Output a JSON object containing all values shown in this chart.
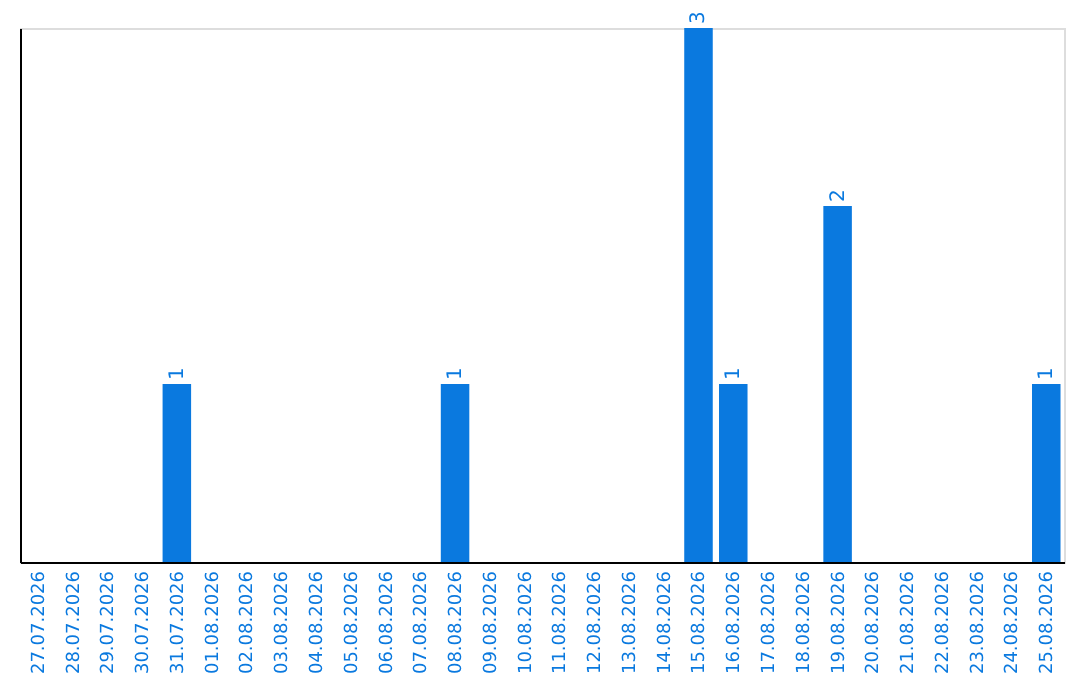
{
  "chart_data": {
    "type": "bar",
    "categories": [
      "27.07.2026",
      "28.07.2026",
      "29.07.2026",
      "30.07.2026",
      "31.07.2026",
      "01.08.2026",
      "02.08.2026",
      "03.08.2026",
      "04.08.2026",
      "05.08.2026",
      "06.08.2026",
      "07.08.2026",
      "08.08.2026",
      "09.08.2026",
      "10.08.2026",
      "11.08.2026",
      "12.08.2026",
      "13.08.2026",
      "14.08.2026",
      "15.08.2026",
      "16.08.2026",
      "17.08.2026",
      "18.08.2026",
      "19.08.2026",
      "20.08.2026",
      "21.08.2026",
      "22.08.2026",
      "23.08.2026",
      "24.08.2026",
      "25.08.2026"
    ],
    "values": [
      0,
      0,
      0,
      0,
      1,
      0,
      0,
      0,
      0,
      0,
      0,
      0,
      1,
      0,
      0,
      0,
      0,
      0,
      0,
      3,
      1,
      0,
      0,
      2,
      0,
      0,
      0,
      0,
      0,
      1
    ],
    "value_labels": [
      null,
      null,
      null,
      null,
      "1",
      null,
      null,
      null,
      null,
      null,
      null,
      null,
      "1",
      null,
      null,
      null,
      null,
      null,
      null,
      "3",
      "1",
      null,
      null,
      "2",
      null,
      null,
      null,
      null,
      null,
      "1"
    ],
    "color": "#0a79df",
    "tick_labels": "x",
    "grid": false
  }
}
